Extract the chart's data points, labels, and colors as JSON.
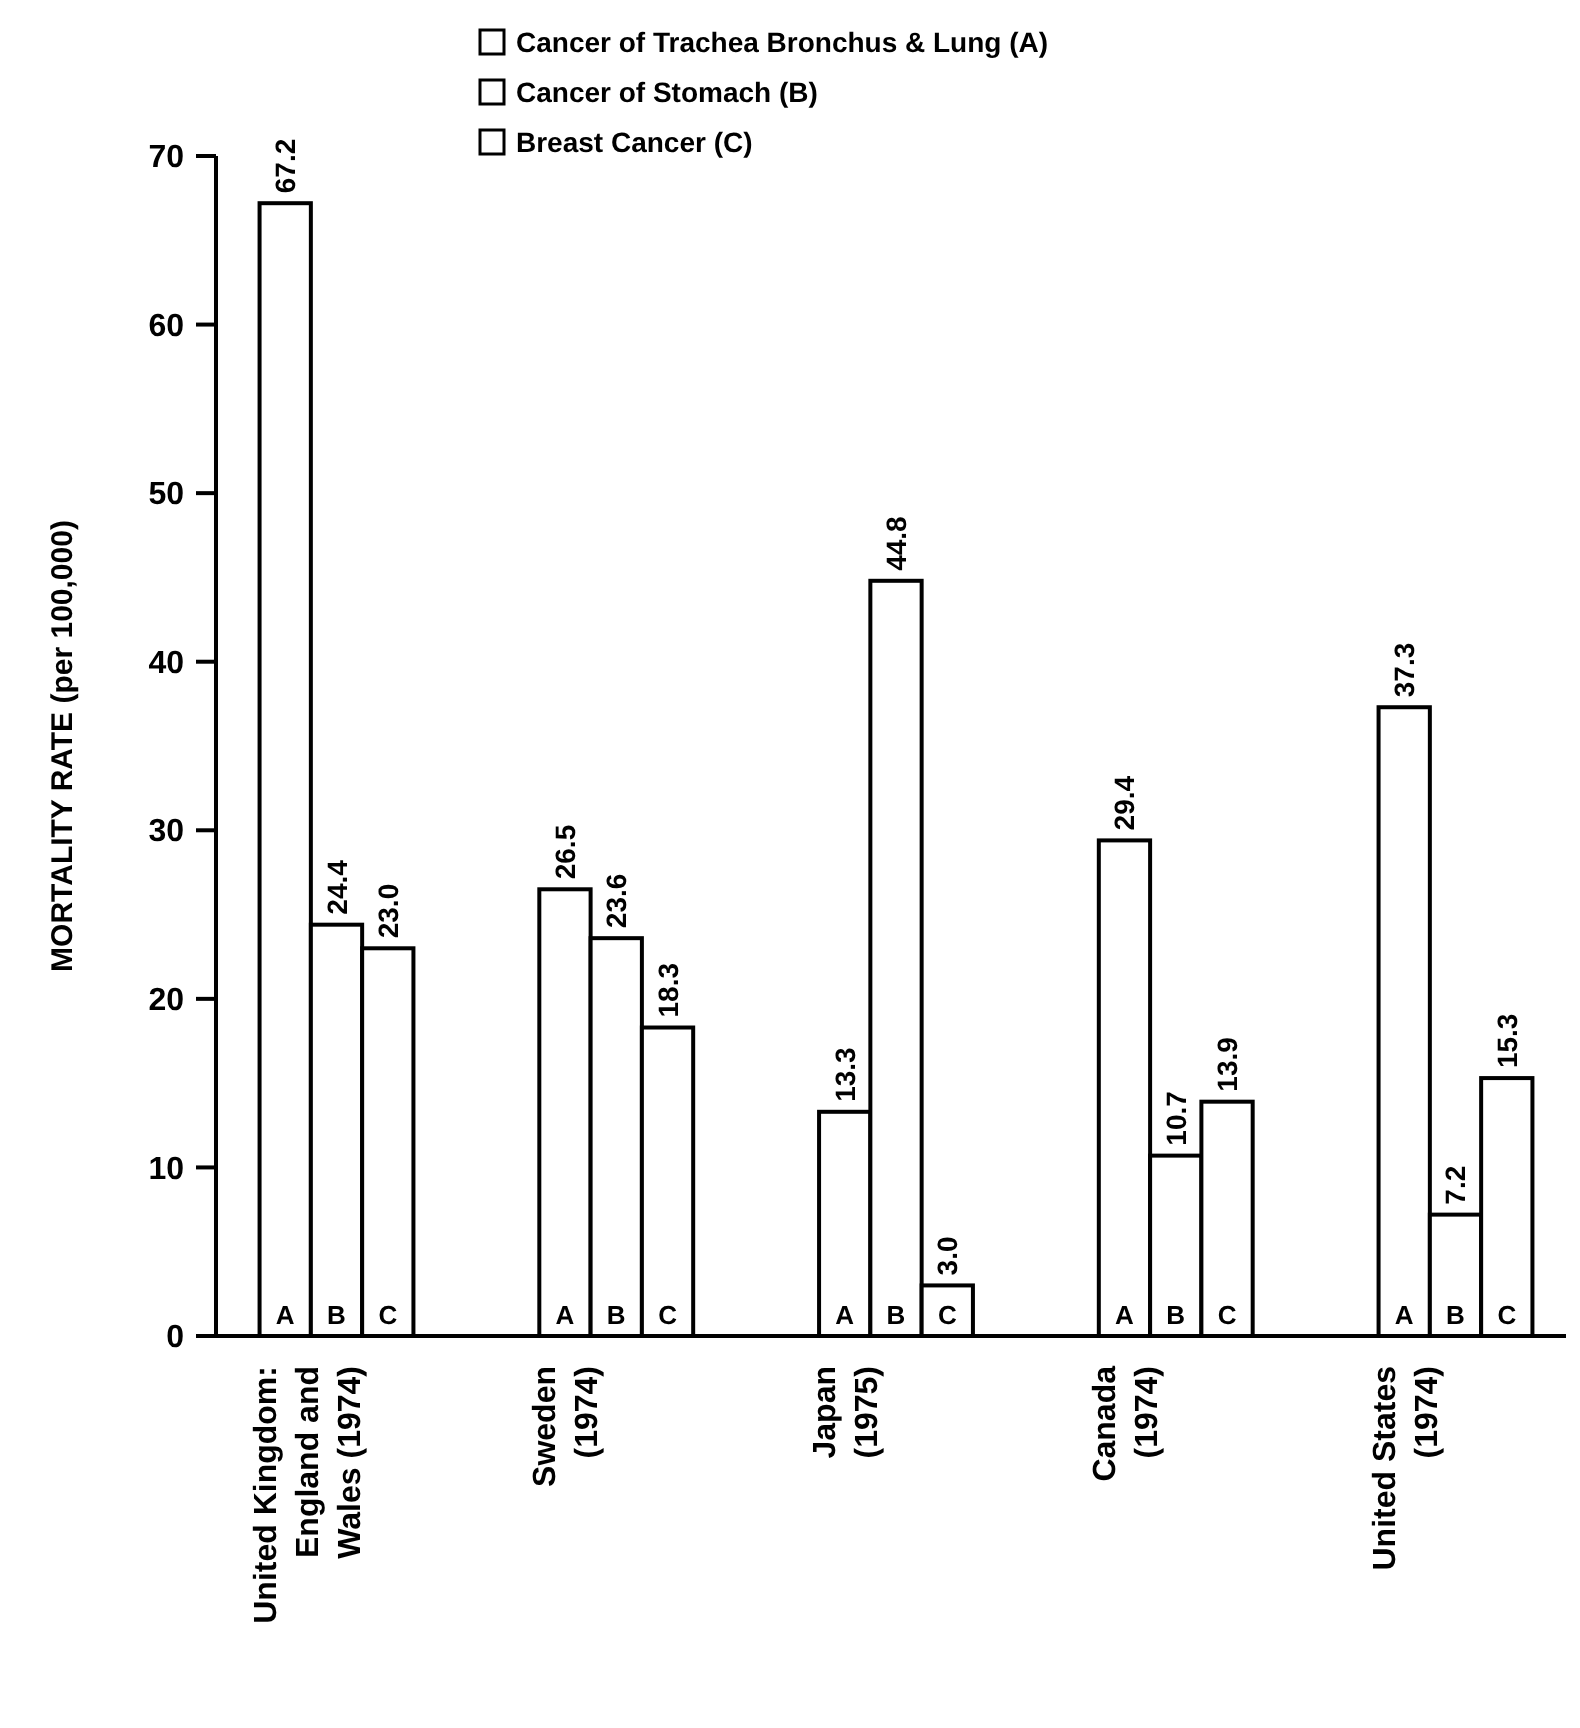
{
  "chart_data": {
    "type": "bar",
    "ylabel": "MORTALITY RATE (per 100,000)",
    "categories": [
      "United Kingdom:\nEngland and\nWales (1974)",
      "Sweden\n(1974)",
      "Japan\n(1975)",
      "Canada\n(1974)",
      "United States\n(1974)"
    ],
    "series": [
      {
        "name": "Cancer of Trachea Bronchus & Lung (A)",
        "color": "#ffffff",
        "values": [
          67.2,
          26.5,
          13.3,
          29.4,
          37.3
        ],
        "value_labels": [
          "67.2",
          "26.5",
          "13.3",
          "29.4",
          "37.3"
        ]
      },
      {
        "name": "Cancer of Stomach (B)",
        "color": "#ffffff",
        "values": [
          24.4,
          23.6,
          44.8,
          10.7,
          7.2
        ],
        "value_labels": [
          "24.4",
          "23.6",
          "44.8",
          "10.7",
          "7.2"
        ]
      },
      {
        "name": "Breast Cancer (C)",
        "color": "#ffffff",
        "values": [
          23.0,
          18.3,
          3.0,
          13.9,
          15.3
        ],
        "value_labels": [
          "23.0",
          "18.3",
          "3.0",
          "13.9",
          "15.3"
        ]
      }
    ],
    "ylim": [
      0,
      70
    ],
    "yticks": [
      0,
      10,
      20,
      30,
      40,
      50,
      60,
      70
    ],
    "legend": "top",
    "grid": false,
    "annotations": [
      "A",
      "B",
      "C",
      "A",
      "B",
      "C",
      "A",
      "B",
      "C",
      "A",
      "B",
      "C",
      "A",
      "B",
      "C"
    ]
  }
}
